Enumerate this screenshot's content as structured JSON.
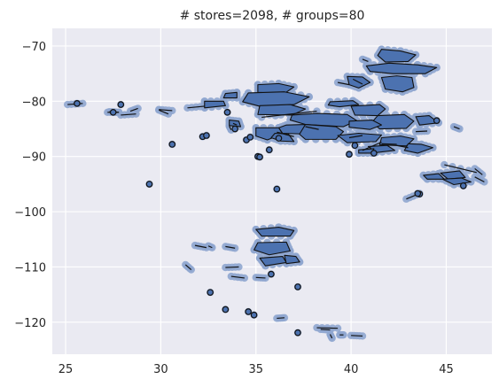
{
  "chart_data": {
    "type": "scatter",
    "title": "# stores=2098, # groups=80",
    "xlabel": "",
    "ylabel": "",
    "xlim": [
      24.3,
      47.4
    ],
    "ylim": [
      -125.8,
      -66.8
    ],
    "xticks": [
      25,
      30,
      35,
      40,
      45
    ],
    "yticks": [
      -70,
      -80,
      -90,
      -100,
      -110,
      -120
    ],
    "xtick_labels": [
      "25",
      "30",
      "35",
      "40",
      "45"
    ],
    "ytick_labels": [
      "−70",
      "−80",
      "−90",
      "−100",
      "−110",
      "−120"
    ],
    "grid": true,
    "colors": {
      "background": "#EAEAF2",
      "point": "#4C72B0",
      "point_edge": "#8FA6CF",
      "hull_fill": "#4C72B0",
      "hull_edge": "#111111"
    },
    "groups": [
      [
        [
          41.6,
          -70.6
        ],
        [
          42.6,
          -70.9
        ],
        [
          43.4,
          -71.6
        ],
        [
          43.0,
          -72.8
        ],
        [
          41.8,
          -72.9
        ],
        [
          41.4,
          -71.7
        ]
      ],
      [
        [
          40.8,
          -73.6
        ],
        [
          42.0,
          -73.1
        ],
        [
          43.5,
          -73.4
        ],
        [
          44.5,
          -73.9
        ],
        [
          43.9,
          -75.0
        ],
        [
          42.2,
          -75.0
        ],
        [
          41.0,
          -74.6
        ]
      ],
      [
        [
          41.6,
          -75.7
        ],
        [
          42.4,
          -75.4
        ],
        [
          43.2,
          -75.7
        ],
        [
          43.3,
          -77.5
        ],
        [
          42.7,
          -78.3
        ],
        [
          41.8,
          -77.8
        ]
      ],
      [
        [
          39.8,
          -75.5
        ],
        [
          40.6,
          -75.6
        ],
        [
          41.0,
          -76.6
        ],
        [
          40.4,
          -77.6
        ],
        [
          39.9,
          -77.0
        ]
      ],
      [
        [
          35.1,
          -77.0
        ],
        [
          36.2,
          -76.8
        ],
        [
          37.0,
          -77.4
        ],
        [
          36.5,
          -78.6
        ],
        [
          35.1,
          -78.4
        ]
      ],
      [
        [
          34.6,
          -78.5
        ],
        [
          36.5,
          -78.3
        ],
        [
          37.8,
          -79.2
        ],
        [
          37.0,
          -80.6
        ],
        [
          35.3,
          -81.0
        ],
        [
          34.3,
          -80.1
        ]
      ],
      [
        [
          35.2,
          -80.8
        ],
        [
          36.8,
          -80.6
        ],
        [
          37.6,
          -81.4
        ],
        [
          36.9,
          -82.5
        ],
        [
          35.1,
          -82.4
        ]
      ],
      [
        [
          33.4,
          -78.6
        ],
        [
          34.0,
          -78.4
        ],
        [
          34.0,
          -79.4
        ],
        [
          33.3,
          -79.4
        ]
      ],
      [
        [
          32.3,
          -80.0
        ],
        [
          33.3,
          -80.0
        ],
        [
          33.4,
          -80.8
        ],
        [
          32.3,
          -81.2
        ]
      ],
      [
        [
          33.6,
          -83.4
        ],
        [
          34.1,
          -83.6
        ],
        [
          34.2,
          -84.6
        ],
        [
          33.6,
          -84.4
        ]
      ],
      [
        [
          36.9,
          -82.5
        ],
        [
          38.2,
          -82.2
        ],
        [
          39.8,
          -82.4
        ],
        [
          40.3,
          -83.5
        ],
        [
          39.6,
          -84.6
        ],
        [
          37.6,
          -84.2
        ],
        [
          36.8,
          -83.4
        ]
      ],
      [
        [
          38.9,
          -80.1
        ],
        [
          40.1,
          -79.9
        ],
        [
          40.4,
          -80.6
        ],
        [
          39.4,
          -81.0
        ],
        [
          38.8,
          -80.7
        ]
      ],
      [
        [
          40.0,
          -80.9
        ],
        [
          41.5,
          -80.6
        ],
        [
          41.8,
          -81.4
        ],
        [
          41.4,
          -82.6
        ],
        [
          40.2,
          -82.5
        ]
      ],
      [
        [
          41.4,
          -82.6
        ],
        [
          42.8,
          -82.4
        ],
        [
          43.3,
          -83.6
        ],
        [
          42.9,
          -84.9
        ],
        [
          41.5,
          -85.0
        ],
        [
          41.1,
          -83.8
        ]
      ],
      [
        [
          39.9,
          -83.6
        ],
        [
          41.1,
          -83.4
        ],
        [
          41.6,
          -84.3
        ],
        [
          41.0,
          -85.1
        ],
        [
          39.9,
          -84.7
        ]
      ],
      [
        [
          37.6,
          -84.2
        ],
        [
          39.2,
          -84.6
        ],
        [
          39.6,
          -85.5
        ],
        [
          39.2,
          -86.9
        ],
        [
          37.6,
          -86.9
        ],
        [
          37.2,
          -85.7
        ]
      ],
      [
        [
          36.6,
          -84.3
        ],
        [
          37.6,
          -84.2
        ],
        [
          37.3,
          -85.9
        ],
        [
          36.4,
          -85.8
        ],
        [
          36.2,
          -84.8
        ]
      ],
      [
        [
          35.0,
          -84.8
        ],
        [
          36.2,
          -84.8
        ],
        [
          36.4,
          -85.9
        ],
        [
          35.6,
          -87.0
        ],
        [
          35.0,
          -86.3
        ]
      ],
      [
        [
          36.0,
          -85.8
        ],
        [
          36.7,
          -85.9
        ],
        [
          37.0,
          -87.3
        ],
        [
          36.3,
          -87.2
        ],
        [
          35.8,
          -86.6
        ]
      ],
      [
        [
          39.3,
          -86.2
        ],
        [
          40.4,
          -85.8
        ],
        [
          41.6,
          -86.1
        ],
        [
          41.3,
          -87.3
        ],
        [
          39.8,
          -87.5
        ]
      ],
      [
        [
          41.6,
          -86.6
        ],
        [
          42.6,
          -86.3
        ],
        [
          43.3,
          -86.8
        ],
        [
          42.9,
          -88.1
        ],
        [
          41.5,
          -87.9
        ]
      ],
      [
        [
          43.0,
          -87.7
        ],
        [
          43.7,
          -87.8
        ],
        [
          44.3,
          -88.4
        ],
        [
          43.5,
          -89.4
        ],
        [
          42.8,
          -88.9
        ]
      ],
      [
        [
          43.4,
          -82.8
        ],
        [
          44.1,
          -82.6
        ],
        [
          44.6,
          -83.9
        ],
        [
          43.6,
          -84.3
        ]
      ],
      [
        [
          40.9,
          -88.2
        ],
        [
          41.9,
          -88.0
        ],
        [
          42.3,
          -88.9
        ],
        [
          41.3,
          -89.3
        ]
      ],
      [
        [
          40.4,
          -88.8
        ],
        [
          41.2,
          -88.6
        ],
        [
          41.1,
          -89.4
        ],
        [
          40.4,
          -89.4
        ]
      ],
      [
        [
          35.0,
          -103.2
        ],
        [
          36.2,
          -102.8
        ],
        [
          37.0,
          -103.4
        ],
        [
          36.8,
          -104.4
        ],
        [
          35.3,
          -104.4
        ]
      ],
      [
        [
          35.1,
          -105.6
        ],
        [
          36.6,
          -105.5
        ],
        [
          36.8,
          -107.1
        ],
        [
          35.7,
          -107.8
        ],
        [
          34.9,
          -106.9
        ]
      ],
      [
        [
          35.2,
          -108.4
        ],
        [
          36.4,
          -108.1
        ],
        [
          36.6,
          -109.2
        ],
        [
          35.5,
          -109.8
        ]
      ],
      [
        [
          36.5,
          -107.9
        ],
        [
          37.1,
          -108.1
        ],
        [
          37.3,
          -109.1
        ],
        [
          36.6,
          -109.4
        ]
      ],
      [
        [
          44.7,
          -93.0
        ],
        [
          45.7,
          -92.6
        ],
        [
          46.0,
          -93.8
        ],
        [
          45.1,
          -94.1
        ]
      ],
      [
        [
          43.8,
          -93.4
        ],
        [
          44.6,
          -93.1
        ],
        [
          44.9,
          -94.1
        ],
        [
          44.0,
          -94.1
        ]
      ],
      [
        [
          44.8,
          -94.1
        ],
        [
          45.8,
          -93.9
        ],
        [
          46.3,
          -94.6
        ],
        [
          45.4,
          -95.1
        ]
      ]
    ],
    "segments": [
      [
        [
          44.9,
          -91.5
        ],
        [
          46.6,
          -92.9
        ]
      ],
      [
        [
          46.5,
          -92.2
        ],
        [
          46.9,
          -93.3
        ]
      ],
      [
        [
          46.5,
          -93.7
        ],
        [
          47.0,
          -94.6
        ]
      ],
      [
        [
          45.4,
          -84.6
        ],
        [
          45.7,
          -85.0
        ]
      ],
      [
        [
          35.3,
          -82.9
        ],
        [
          38.2,
          -81.8
        ]
      ],
      [
        [
          31.4,
          -81.2
        ],
        [
          32.3,
          -80.9
        ]
      ],
      [
        [
          25.1,
          -80.6
        ],
        [
          25.9,
          -80.4
        ]
      ],
      [
        [
          27.2,
          -82.0
        ],
        [
          27.8,
          -82.0
        ]
      ],
      [
        [
          27.3,
          -81.9
        ],
        [
          27.8,
          -82.0
        ]
      ],
      [
        [
          28.4,
          -81.8
        ],
        [
          28.8,
          -81.3
        ]
      ],
      [
        [
          27.9,
          -82.5
        ],
        [
          28.7,
          -82.3
        ]
      ],
      [
        [
          29.9,
          -81.5
        ],
        [
          30.6,
          -81.7
        ]
      ],
      [
        [
          29.9,
          -81.6
        ],
        [
          30.4,
          -82.3
        ]
      ],
      [
        [
          37.6,
          -84.6
        ],
        [
          38.3,
          -85.1
        ]
      ],
      [
        [
          36.1,
          -85.6
        ],
        [
          37.0,
          -86.4
        ]
      ],
      [
        [
          33.8,
          -84.0
        ],
        [
          34.0,
          -84.3
        ]
      ],
      [
        [
          33.6,
          -84.5
        ],
        [
          33.7,
          -85.2
        ]
      ],
      [
        [
          43.4,
          -85.5
        ],
        [
          44.0,
          -85.4
        ]
      ],
      [
        [
          41.6,
          -87.7
        ],
        [
          42.4,
          -87.8
        ]
      ],
      [
        [
          40.6,
          -88.9
        ],
        [
          41.6,
          -87.4
        ]
      ],
      [
        [
          42.4,
          -88.0
        ],
        [
          43.0,
          -88.4
        ]
      ],
      [
        [
          39.9,
          -86.6
        ],
        [
          40.6,
          -86.2
        ]
      ],
      [
        [
          40.1,
          -76.0
        ],
        [
          40.6,
          -76.9
        ]
      ],
      [
        [
          39.3,
          -76.6
        ],
        [
          39.9,
          -77.0
        ]
      ],
      [
        [
          40.6,
          -72.4
        ],
        [
          40.9,
          -72.8
        ]
      ],
      [
        [
          31.8,
          -106.1
        ],
        [
          32.4,
          -106.5
        ]
      ],
      [
        [
          32.5,
          -106.2
        ],
        [
          32.7,
          -106.5
        ]
      ],
      [
        [
          33.4,
          -106.3
        ],
        [
          33.9,
          -106.6
        ]
      ],
      [
        [
          33.4,
          -110.1
        ],
        [
          34.1,
          -110.0
        ]
      ],
      [
        [
          31.3,
          -109.6
        ],
        [
          31.6,
          -110.5
        ]
      ],
      [
        [
          33.7,
          -111.7
        ],
        [
          34.4,
          -112.0
        ]
      ],
      [
        [
          35.0,
          -111.9
        ],
        [
          35.5,
          -112.0
        ]
      ],
      [
        [
          36.1,
          -119.3
        ],
        [
          36.5,
          -119.2
        ]
      ],
      [
        [
          38.2,
          -121.0
        ],
        [
          39.3,
          -121.1
        ]
      ],
      [
        [
          38.4,
          -121.3
        ],
        [
          38.9,
          -121.4
        ]
      ],
      [
        [
          40.0,
          -122.4
        ],
        [
          40.6,
          -122.5
        ]
      ],
      [
        [
          38.9,
          -122.2
        ],
        [
          39.0,
          -122.9
        ]
      ],
      [
        [
          39.4,
          -122.3
        ],
        [
          39.6,
          -122.3
        ]
      ],
      [
        [
          42.9,
          -97.7
        ],
        [
          43.6,
          -96.7
        ]
      ]
    ],
    "single_points": [
      [
        25.6,
        -80.4
      ],
      [
        27.5,
        -82.0
      ],
      [
        27.9,
        -80.6
      ],
      [
        29.4,
        -95.0
      ],
      [
        30.6,
        -87.8
      ],
      [
        32.2,
        -86.4
      ],
      [
        32.4,
        -86.2
      ],
      [
        33.5,
        -82.0
      ],
      [
        33.9,
        -85.0
      ],
      [
        34.5,
        -87.0
      ],
      [
        34.7,
        -86.5
      ],
      [
        35.1,
        -90.0
      ],
      [
        35.2,
        -90.1
      ],
      [
        35.7,
        -88.8
      ],
      [
        36.1,
        -95.9
      ],
      [
        36.2,
        -86.7
      ],
      [
        39.9,
        -89.6
      ],
      [
        40.2,
        -88.0
      ],
      [
        41.2,
        -89.4
      ],
      [
        43.6,
        -96.8
      ],
      [
        43.5,
        -96.7
      ],
      [
        44.5,
        -83.5
      ],
      [
        45.9,
        -95.3
      ],
      [
        32.6,
        -114.6
      ],
      [
        33.4,
        -117.7
      ],
      [
        34.6,
        -118.1
      ],
      [
        34.9,
        -118.7
      ],
      [
        35.8,
        -111.3
      ],
      [
        37.2,
        -113.6
      ],
      [
        37.2,
        -121.9
      ]
    ]
  }
}
